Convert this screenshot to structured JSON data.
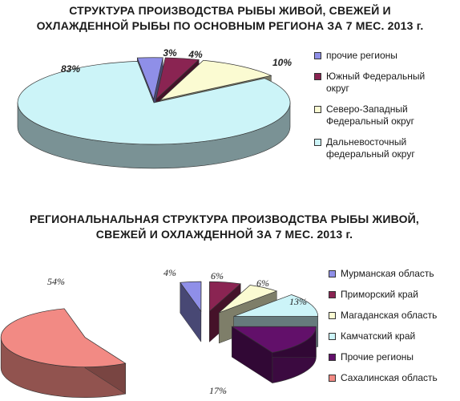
{
  "chart_data": [
    {
      "type": "pie",
      "title_lines": [
        "СТРУКТУРА ПРОИЗВОДСТВА РЫБЫ ЖИВОЙ, СВЕЖЕЙ И",
        "ОХЛАЖДЕННОЙ РЫБЫ ПО ОСНОВНЫМ РЕГИОНА ЗА 7 МЕС. 2013 г."
      ],
      "slices": [
        {
          "label": "прочие регионы",
          "value": 3,
          "value_label": "3%",
          "color": "#8f8fe8"
        },
        {
          "label": "Южный Федеральный округ",
          "value": 4,
          "value_label": "4%",
          "color": "#8a2452"
        },
        {
          "label": "Северо-Западный Федеральный округ",
          "value": 10,
          "value_label": "10%",
          "color": "#fbfbd2"
        },
        {
          "label": "Дальневосточный федеральный округ",
          "value": 83,
          "value_label": "83%",
          "color": "#ccf4f8"
        }
      ],
      "legend_lines": [
        [
          "прочие регионы"
        ],
        [
          "Южный Федеральный",
          "округ"
        ],
        [
          "Северо-Западный",
          "Федеральный округ"
        ],
        [
          "Дальневосточный",
          "федеральный округ"
        ]
      ],
      "legend_position": "right"
    },
    {
      "type": "pie",
      "title_lines": [
        "РЕГИОНАЛЬНАЛЬНАЯ СТРУКТУРА ПРОИЗВОДСТВА РЫБЫ ЖИВОЙ,",
        "СВЕЖЕЙ И ОХЛАЖДЕННОЙ ЗА 7 МЕС. 2013 г."
      ],
      "slices": [
        {
          "label": "Мурманская область",
          "value": 4,
          "value_label": "4%",
          "color": "#8f8fe8"
        },
        {
          "label": "Приморский край",
          "value": 6,
          "value_label": "6%",
          "color": "#8a2452"
        },
        {
          "label": "Магаданская область",
          "value": 6,
          "value_label": "6%",
          "color": "#fbfbd2"
        },
        {
          "label": "Камчатский край",
          "value": 13,
          "value_label": "13%",
          "color": "#ccf4f8"
        },
        {
          "label": "Прочие регионы",
          "value": 17,
          "value_label": "17%",
          "color": "#62106a"
        },
        {
          "label": "Сахалинская область",
          "value": 54,
          "value_label": "54%",
          "color": "#f28a84"
        }
      ],
      "legend_position": "right"
    }
  ]
}
